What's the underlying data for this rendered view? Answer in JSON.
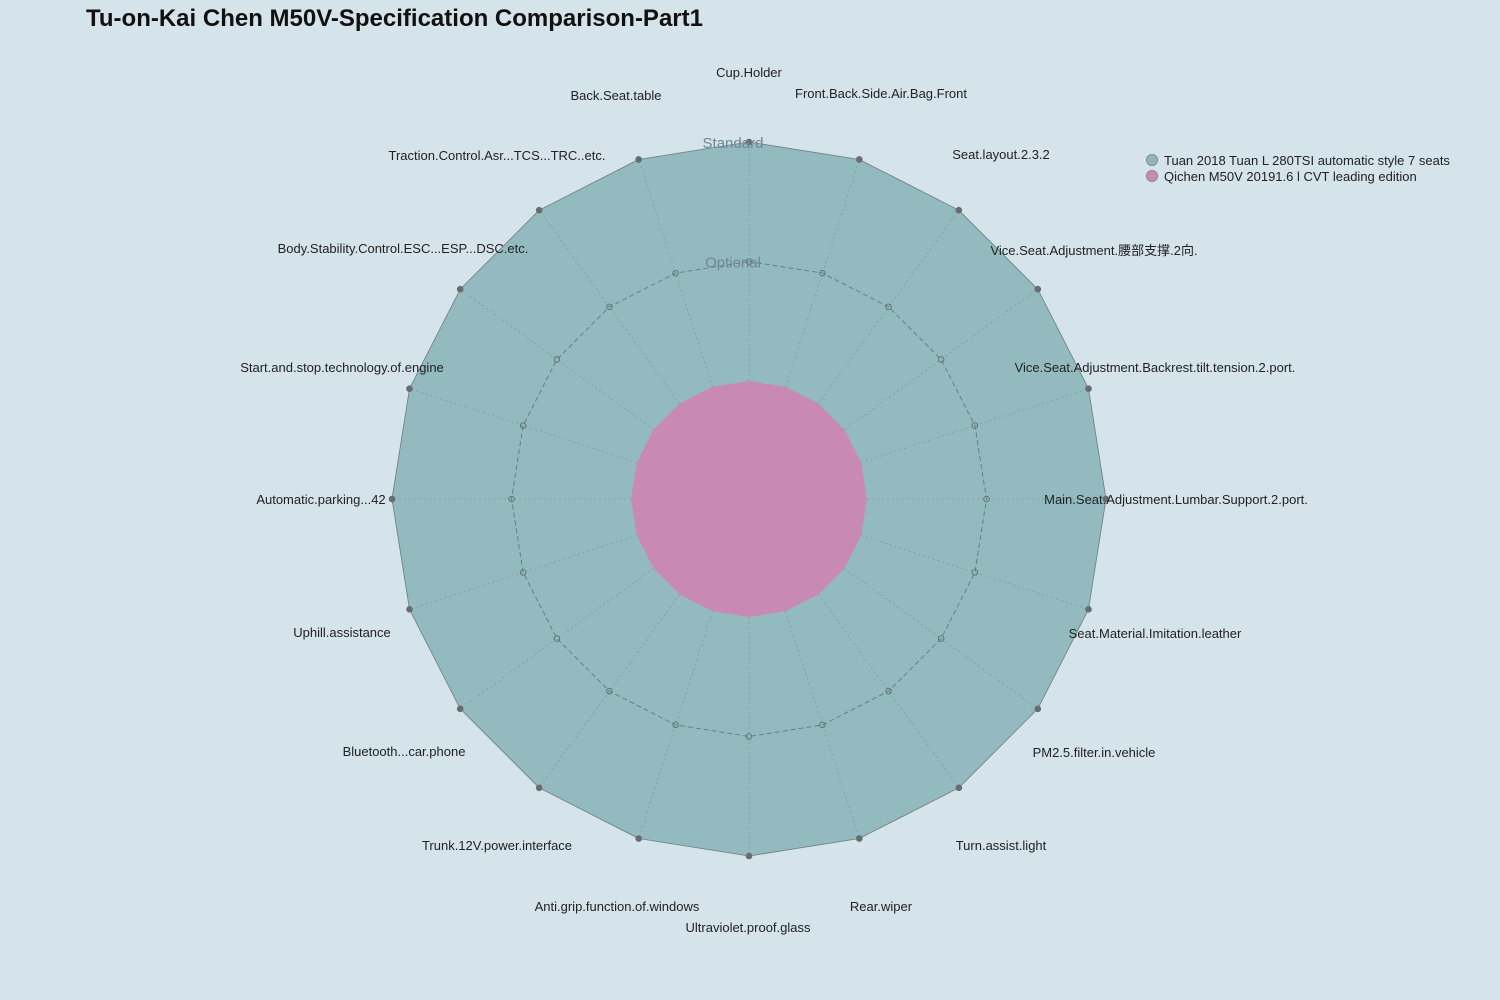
{
  "chart_data": {
    "type": "radar",
    "title": "Tu-on-Kai Chen M50V-Specification Comparison-Part1",
    "axes": [
      "Cup.Holder",
      "Front.Back.Side.Air.Bag.Front",
      "Seat.layout.2.3.2",
      "Vice.Seat.Adjustment.腰部支撑.2向.",
      "Vice.Seat.Adjustment.Backrest.tilt.tension.2.port.",
      "Main.Seat.Adjustment.Lumbar.Support.2.port.",
      "Seat.Material.Imitation.leather",
      "PM2.5.filter.in.vehicle",
      "Turn.assist.light",
      "Rear.wiper",
      "Ultraviolet.proof.glass",
      "Anti.grip.function.of.windows",
      "Trunk.12V.power.interface",
      "Bluetooth...car.phone",
      "Uphill.assistance",
      "Automatic.parking...42",
      "Start.and.stop.technology.of.engine",
      "Body.Stability.Control.ESC...ESP...DSC.etc.",
      "Traction.Control.Asr...TCS...TRC..etc.",
      "Back.Seat.table"
    ],
    "levels": [
      "",
      "Optional",
      "Standard"
    ],
    "series": [
      {
        "name": "Tuan 2018 Tuan L 280TSI automatic style 7 seats",
        "color": "#8fb8bd",
        "values": [
          2,
          2,
          2,
          2,
          2,
          2,
          2,
          2,
          2,
          2,
          2,
          2,
          2,
          2,
          2,
          2,
          2,
          2,
          2,
          2
        ]
      },
      {
        "name": "Qichen M50V 20191.6 l CVT leading edition",
        "color": "#c88ab5",
        "values": [
          0,
          0,
          0,
          0,
          0,
          0,
          0,
          0,
          0,
          0,
          0,
          0,
          0,
          0,
          0,
          0,
          0,
          0,
          0,
          0
        ]
      }
    ],
    "legend_position": "top-right"
  }
}
